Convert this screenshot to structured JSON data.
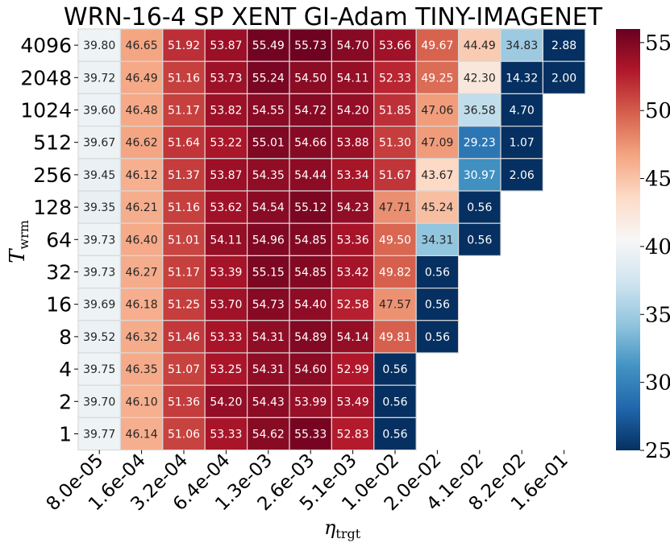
{
  "chart_data": {
    "type": "heatmap",
    "title": "WRN-16-4 SP XENT GI-Adam TINY-IMAGENET",
    "xlabel_main": "η",
    "xlabel_sub": "trgt",
    "ylabel_main": "T",
    "ylabel_sub": "wrm",
    "x_categories": [
      "8.0e-05",
      "1.6e-04",
      "3.2e-04",
      "6.4e-04",
      "1.3e-03",
      "2.6e-03",
      "5.1e-03",
      "1.0e-02",
      "2.0e-02",
      "4.1e-02",
      "8.2e-02",
      "1.6e-01"
    ],
    "y_categories": [
      "4096",
      "2048",
      "1024",
      "512",
      "256",
      "128",
      "64",
      "32",
      "16",
      "8",
      "4",
      "2",
      "1"
    ],
    "values": [
      [
        39.8,
        46.65,
        51.92,
        53.87,
        55.49,
        55.73,
        54.7,
        53.66,
        49.67,
        44.49,
        34.83,
        2.88
      ],
      [
        39.72,
        46.49,
        51.16,
        53.73,
        55.24,
        54.5,
        54.11,
        52.33,
        49.25,
        42.3,
        14.32,
        2.0
      ],
      [
        39.6,
        46.48,
        51.17,
        53.82,
        54.55,
        54.72,
        54.2,
        51.85,
        47.06,
        36.58,
        4.7,
        null
      ],
      [
        39.67,
        46.62,
        51.64,
        53.22,
        55.01,
        54.66,
        53.88,
        51.3,
        47.09,
        29.23,
        1.07,
        null
      ],
      [
        39.45,
        46.12,
        51.37,
        53.87,
        54.35,
        54.44,
        53.34,
        51.67,
        43.67,
        30.97,
        2.06,
        null
      ],
      [
        39.35,
        46.21,
        51.16,
        53.62,
        54.54,
        55.12,
        54.23,
        47.71,
        45.24,
        0.56,
        null,
        null
      ],
      [
        39.73,
        46.4,
        51.01,
        54.11,
        54.96,
        54.85,
        53.36,
        49.5,
        34.31,
        0.56,
        null,
        null
      ],
      [
        39.73,
        46.27,
        51.17,
        53.39,
        55.15,
        54.85,
        53.42,
        49.82,
        0.56,
        null,
        null,
        null
      ],
      [
        39.69,
        46.18,
        51.25,
        53.7,
        54.73,
        54.4,
        52.58,
        47.57,
        0.56,
        null,
        null,
        null
      ],
      [
        39.52,
        46.32,
        51.46,
        53.33,
        54.31,
        54.89,
        54.14,
        49.81,
        0.56,
        null,
        null,
        null
      ],
      [
        39.75,
        46.35,
        51.07,
        53.25,
        54.31,
        54.6,
        52.99,
        0.56,
        null,
        null,
        null,
        null
      ],
      [
        39.7,
        46.1,
        51.36,
        54.2,
        54.43,
        53.99,
        53.49,
        0.56,
        null,
        null,
        null,
        null
      ],
      [
        39.77,
        46.14,
        51.06,
        53.33,
        54.62,
        55.33,
        52.83,
        0.56,
        null,
        null,
        null,
        null
      ]
    ],
    "colorbar": {
      "min": 25,
      "max": 56,
      "ticks": [
        "25",
        "30",
        "35",
        "40",
        "45",
        "50",
        "55"
      ],
      "colormap": "RdBu_r"
    }
  }
}
